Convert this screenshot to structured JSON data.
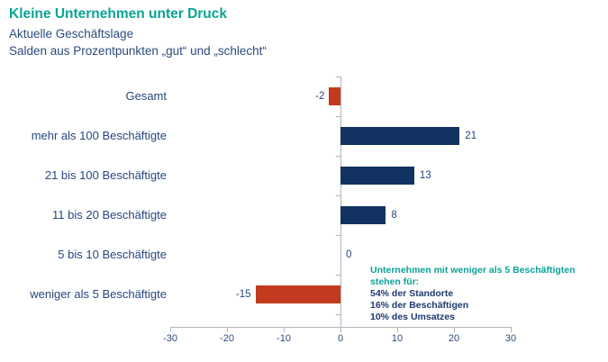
{
  "header": {
    "title": "Kleine Unternehmen unter Druck",
    "subtitle_line1": "Aktuelle Geschäftslage",
    "subtitle_line2": "Salden aus Prozentpunkten „gut“ und „schlecht“"
  },
  "chart_data": {
    "type": "bar",
    "orientation": "horizontal",
    "title": "Kleine Unternehmen unter Druck",
    "subtitle1": "Aktuelle Geschäftslage",
    "subtitle2": "Salden aus Prozentpunkten „gut“ und „schlecht“",
    "categories": [
      "Gesamt",
      "mehr als 100 Beschäftigte",
      "21 bis 100 Beschäftigte",
      "11 bis 20 Beschäftigte",
      "5 bis 10 Beschäftigte",
      "weniger als 5 Beschäftigte"
    ],
    "values": [
      -2,
      21,
      13,
      8,
      0,
      -15
    ],
    "xlim": [
      -30,
      30
    ],
    "xticks": [
      -30,
      -20,
      -10,
      0,
      10,
      20,
      30
    ],
    "grid": false,
    "legend": "none",
    "positive_color": "#123361",
    "negative_color": "#C23B1E"
  },
  "annotation": {
    "heading": "Unternehmen mit weniger als 5 Beschäftigten stehen für:",
    "lines": [
      "54% der Standorte",
      "16% der Beschäftigen",
      "10% des Umsatzes"
    ]
  },
  "colors": {
    "accent_teal": "#0BA396",
    "navy_text": "#27477D",
    "bar_positive": "#123361",
    "bar_negative": "#C23B1E",
    "axis_gray": "#AEB6BF",
    "background": "#FFFFFF"
  }
}
